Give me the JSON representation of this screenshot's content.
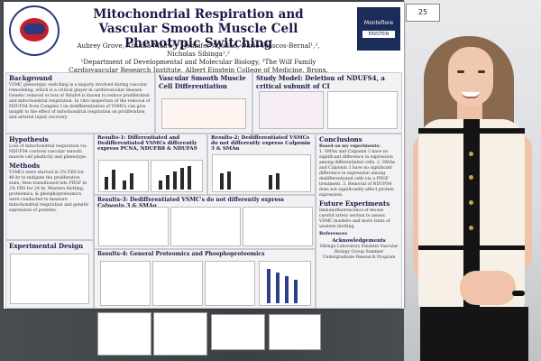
{
  "poster": {
    "title": "Mitochondrial Respiration and Vascular Smooth Muscle Cell Phenotypic Switching",
    "authors": "Aubrey Grove, Alishba Maira¹,², Jennifer Aguilan, Dario Riascos-Bernal¹,², Nicholas Sibinga¹,²",
    "affiliation": "¹Department of Developmental and Molecular Biology, ²The Wilf Family Cardiovascular Research Institute, Albert Einstein College of Medicine, Bronx, NY",
    "logo_text": "EINSTEIN VASCULAR BIOLOGY GROUP",
    "montefiore": "Montefiore",
    "einstein": "EINSTEIN",
    "board_number": "25",
    "sections": {
      "background_h": "Background",
      "background_t": "VSMC phenotypic switching is a majorly involved during vascular remodeling, which is a critical player in cardiovascular disease. Genetic removal or loss of Ndufs4 is known to reduce proliferation and mitochondrial respiration. In vitro inspection of the removal of NDUFS4 from Complex I on dedifferentiation of VSMCs can give insight to the effect of mitochondrial respiration on proliferation and arterial injury recovery.",
      "vsmc_h": "Vascular Smooth Muscle Cell Differentiation",
      "study_h": "Study Model: Deletion of NDUFS4, a critical subunit of CI",
      "hypothesis_h": "Hypothesis",
      "hypothesis_t": "Loss of mitochondrial respiration via NDUFS4 controls vascular smooth muscle cell plasticity and phenotype.",
      "methods_h": "Methods",
      "methods_t": "VSMCs were starved in 2% FBS for 48 hr to mitigate the proliferative state, then transitioned into PDGF in 2% FBS for 24 hr. Western blotting, proteomics, & phosphoproteomics were conducted to measure mitochondrial respiration and genetic expression of proteins.",
      "design_h": "Experimental Design",
      "r1_h": "Results-1: Differentiated and Dedifferentiated VSMCs differently express PCNA, NDUFB8 & NDUFA9",
      "r2_h": "Results-2: Dedifferentiated VSMCs do not differently express Calponin 3 & SMAα",
      "r3_h": "Results-3: Dedifferentiated VSMC's do not differently express Calponin 3 & SMAα",
      "r4_h": "Results-4: General Proteomics and Phosphoproteomics",
      "conclusions_h": "Conclusions",
      "conclusions_sub": "Based on my experiments:",
      "conclusions_t": "1. SMAα and Calponin 3 have no significant difference in expression among differentiated cells. 2. SMAα and Calponin 3 have no significant difference in expression among dedifferentiated cells via a PDGF treatment. 3. Removal of NDUFS4 does not significantly affect protein expression.",
      "future_h": "Future Experiments",
      "future_t": "Immunofluorescence of mouse carotid artery section to assess VSMC markers and more trials of western blotting.",
      "references_h": "References",
      "ack_h": "Acknowledgements",
      "ack_t": "Sibinga Laboratory Einstein Vascular Biology Group Summer Undergraduate Research Program"
    }
  }
}
